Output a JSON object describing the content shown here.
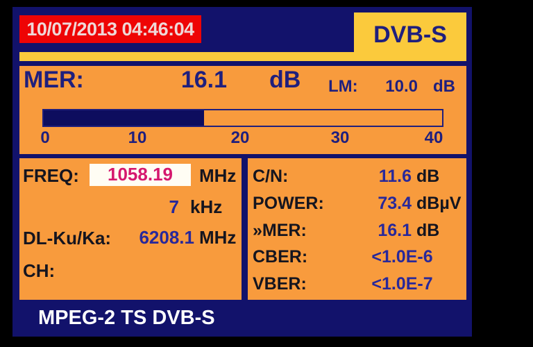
{
  "header": {
    "datetime": "10/07/2013 04:46:04",
    "mode": "DVB-S"
  },
  "mer": {
    "label": "MER:",
    "value": "16.1",
    "unit": "dB",
    "lm_label": "LM:",
    "lm_value": "10.0",
    "lm_unit": "dB",
    "gauge": {
      "min": 0,
      "max": 40,
      "value": 16.1,
      "fill_percent": 40.25,
      "ticks": [
        "0",
        "10",
        "20",
        "30",
        "40"
      ]
    }
  },
  "tuning": {
    "freq_label": "FREQ:",
    "freq_value": "1058.19",
    "freq_unit": "MHz",
    "step_value": "7",
    "step_unit": "kHz",
    "downlink_label": "DL-Ku/Ka:",
    "downlink_value": "6208.1",
    "downlink_unit": "MHz",
    "channel_label": "CH:",
    "channel_value": ""
  },
  "measurements": {
    "rows": [
      {
        "label": "C/N:",
        "value": "11.6",
        "unit": "dB"
      },
      {
        "label": "POWER:",
        "value": "73.4",
        "unit": "dBµV"
      },
      {
        "label": "»MER:",
        "value": "16.1",
        "unit": "dB"
      },
      {
        "label": "CBER:",
        "value": "<1.0E-6",
        "unit": ""
      },
      {
        "label": "VBER:",
        "value": "<1.0E-7",
        "unit": ""
      }
    ]
  },
  "footer": {
    "status": "MPEG-2 TS DVB-S"
  },
  "colors": {
    "navy_background": "#12126b",
    "gauge_fill_navy": "#0d0d5e",
    "panel_orange": "#f89b3d",
    "tab_yellow": "#fbca3c",
    "datetime_red": "#ee0405",
    "freq_magenta": "#d5186e",
    "value_blue": "#28289a",
    "text_navy": "#1f1f7d",
    "label_dark": "#15151f"
  }
}
